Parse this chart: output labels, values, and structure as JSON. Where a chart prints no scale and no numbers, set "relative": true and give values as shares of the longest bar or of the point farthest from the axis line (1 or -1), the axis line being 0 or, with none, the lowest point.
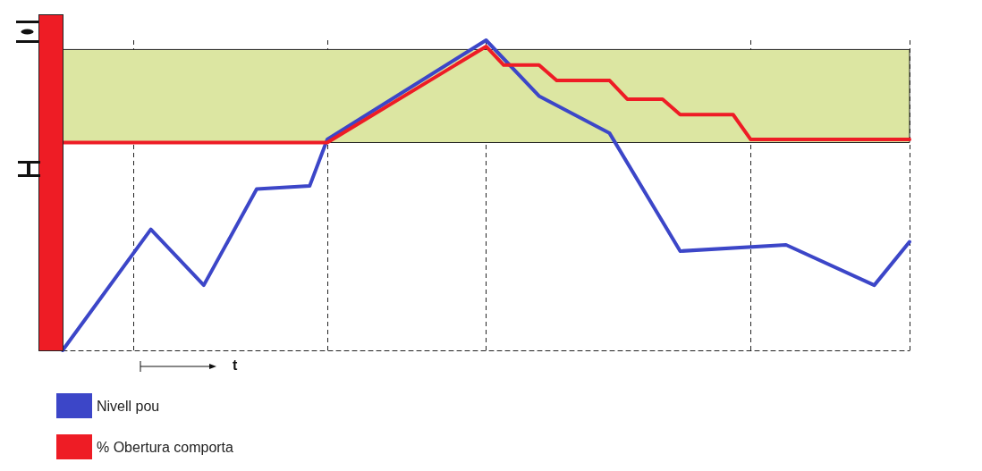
{
  "chart_data": {
    "type": "line",
    "relative": true,
    "xlabel": "t",
    "categories": [
      null,
      null,
      null,
      null,
      null,
      null,
      null,
      null,
      null,
      null,
      null,
      null,
      null,
      null,
      null,
      null,
      null,
      null,
      null,
      null,
      null,
      null,
      null,
      null,
      null,
      null,
      null,
      null,
      null,
      null,
      null,
      null,
      null,
      null,
      null,
      null,
      null,
      null,
      null,
      null,
      null,
      null,
      null,
      null,
      null,
      null,
      null,
      null,
      null
    ],
    "series": [
      {
        "name": "Nivell pou",
        "color": "#3c46c8",
        "values": [
          0,
          null,
          null,
          null,
          null,
          0.39,
          null,
          null,
          0.21,
          null,
          null,
          0.52,
          null,
          null,
          0.53,
          0.68,
          null,
          null,
          null,
          null,
          null,
          null,
          null,
          null,
          1,
          null,
          null,
          0.82,
          null,
          null,
          null,
          0.7,
          null,
          null,
          null,
          0.32,
          null,
          null,
          null,
          null,
          null,
          0.34,
          null,
          null,
          null,
          null,
          0.21,
          null,
          0.35
        ]
      },
      {
        "name": "% Obertura comporta",
        "color": "#ee1c25",
        "values": [
          0.67,
          null,
          null,
          null,
          null,
          null,
          null,
          null,
          null,
          null,
          null,
          null,
          null,
          null,
          null,
          0.67,
          null,
          null,
          null,
          null,
          null,
          null,
          null,
          null,
          0.98,
          0.92,
          null,
          0.92,
          0.87,
          null,
          null,
          0.87,
          0.81,
          null,
          0.81,
          0.76,
          null,
          null,
          0.76,
          0.68,
          null,
          null,
          null,
          null,
          null,
          null,
          null,
          null,
          0.68
        ]
      }
    ],
    "bands": [
      {
        "axis": "y",
        "from": 0.67,
        "to": 0.97,
        "color": "#dce6a2"
      }
    ],
    "legend": "bottom left",
    "grid": "x",
    "marker": "none",
    "line_style": "solid"
  }
}
